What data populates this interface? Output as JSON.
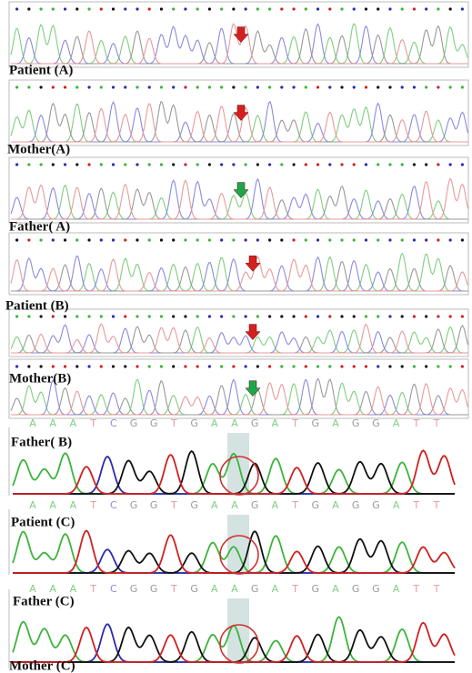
{
  "panels": [
    {
      "label": "Patient (A)"
    },
    {
      "label": "Mother(A)"
    },
    {
      "label": "Father( A)"
    },
    {
      "label": "Patient (B)"
    },
    {
      "label": "Mother(B)"
    },
    {
      "label": "Father( B)"
    },
    {
      "label": "Patient (C)"
    },
    {
      "label": "Father (C)"
    },
    {
      "label": "Mother (C)"
    }
  ],
  "sequences": [
    [
      "A",
      "A",
      "A",
      "T",
      "C",
      "G",
      "G",
      "T",
      "G",
      "A",
      "A",
      "G",
      "A",
      "T",
      "G",
      "A",
      "G",
      "G",
      "A",
      "T",
      "T"
    ],
    [
      "A",
      "A",
      "A",
      "T",
      "C",
      "G",
      "G",
      "T",
      "G",
      "A",
      "A",
      "G",
      "A",
      "T",
      "G",
      "A",
      "G",
      "G",
      "A",
      "T",
      "T"
    ],
    [
      "A",
      "A",
      "A",
      "T",
      "C",
      "G",
      "G",
      "T",
      "G",
      "A",
      "A",
      "G",
      "A",
      "T",
      "G",
      "A",
      "G",
      "G",
      "A",
      "T",
      "T"
    ]
  ]
}
